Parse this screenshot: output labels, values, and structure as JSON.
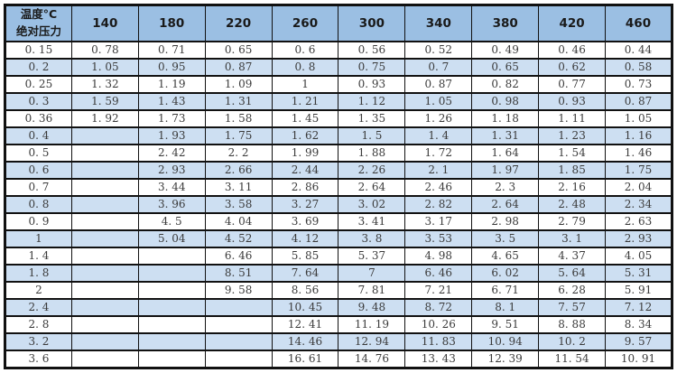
{
  "chart_data": {
    "type": "table",
    "corner_header": {
      "line1": "温度°C",
      "line2": "绝对压力"
    },
    "columns": [
      "140",
      "180",
      "220",
      "260",
      "300",
      "340",
      "380",
      "420",
      "460"
    ],
    "rows": [
      {
        "label": "0.15",
        "values": [
          "0.78",
          "0.71",
          "0.65",
          "0.6",
          "0.56",
          "0.52",
          "0.49",
          "0.46",
          "0.44"
        ]
      },
      {
        "label": "0.2",
        "values": [
          "1.05",
          "0.95",
          "0.87",
          "0.8",
          "0.75",
          "0.7",
          "0.65",
          "0.62",
          "0.58"
        ]
      },
      {
        "label": "0.25",
        "values": [
          "1.32",
          "1.19",
          "1.09",
          "1",
          "0.93",
          "0.87",
          "0.82",
          "0.77",
          "0.73"
        ]
      },
      {
        "label": "0.3",
        "values": [
          "1.59",
          "1.43",
          "1.31",
          "1.21",
          "1.12",
          "1.05",
          "0.98",
          "0.93",
          "0.87"
        ]
      },
      {
        "label": "0.36",
        "values": [
          "1.92",
          "1.73",
          "1.58",
          "1.45",
          "1.35",
          "1.26",
          "1.18",
          "1.11",
          "1.05"
        ]
      },
      {
        "label": "0.4",
        "values": [
          "",
          "1.93",
          "1.75",
          "1.62",
          "1.5",
          "1.4",
          "1.31",
          "1.23",
          "1.16"
        ]
      },
      {
        "label": "0.5",
        "values": [
          "",
          "2.42",
          "2.2",
          "1.99",
          "1.88",
          "1.72",
          "1.64",
          "1.54",
          "1.46"
        ]
      },
      {
        "label": "0.6",
        "values": [
          "",
          "2.93",
          "2.66",
          "2.44",
          "2.26",
          "2.1",
          "1.97",
          "1.85",
          "1.75"
        ]
      },
      {
        "label": "0.7",
        "values": [
          "",
          "3.44",
          "3.11",
          "2.86",
          "2.64",
          "2.46",
          "2.3",
          "2.16",
          "2.04"
        ]
      },
      {
        "label": "0.8",
        "values": [
          "",
          "3.96",
          "3.58",
          "3.27",
          "3.02",
          "2.82",
          "2.64",
          "2.48",
          "2.34"
        ]
      },
      {
        "label": "0.9",
        "values": [
          "",
          "4.5",
          "4.04",
          "3.69",
          "3.41",
          "3.17",
          "2.98",
          "2.79",
          "2.63"
        ]
      },
      {
        "label": "1",
        "values": [
          "",
          "5.04",
          "4.52",
          "4.12",
          "3.8",
          "3.53",
          "3.5",
          "3.1",
          "2.93"
        ]
      },
      {
        "label": "1.4",
        "values": [
          "",
          "",
          "6.46",
          "5.85",
          "5.37",
          "4.98",
          "4.65",
          "4.37",
          "4.05"
        ]
      },
      {
        "label": "1.8",
        "values": [
          "",
          "",
          "8.51",
          "7.64",
          "7",
          "6.46",
          "6.02",
          "5.64",
          "5.31"
        ]
      },
      {
        "label": "2",
        "values": [
          "",
          "",
          "9.58",
          "8.56",
          "7.81",
          "7.21",
          "6.71",
          "6.28",
          "5.91"
        ]
      },
      {
        "label": "2.4",
        "values": [
          "",
          "",
          "",
          "10.45",
          "9.48",
          "8.72",
          "8.1",
          "7.57",
          "7.12"
        ]
      },
      {
        "label": "2.8",
        "values": [
          "",
          "",
          "",
          "12.41",
          "11.19",
          "10.26",
          "9.51",
          "8.88",
          "8.34"
        ]
      },
      {
        "label": "3.2",
        "values": [
          "",
          "",
          "",
          "14.46",
          "12.94",
          "11.83",
          "10.94",
          "10.2",
          "9.57"
        ]
      },
      {
        "label": "3.6",
        "values": [
          "",
          "",
          "",
          "16.61",
          "14.76",
          "13.43",
          "12.39",
          "11.54",
          "10.91"
        ]
      }
    ]
  },
  "colors": {
    "header_bg": "#9BBFE3",
    "stripe_bg": "#CDDFF2",
    "white_row_bg": "#FFFFFF",
    "border": "#111111",
    "header_text": "#1A1A1A",
    "cell_text": "#3B3B3B"
  }
}
